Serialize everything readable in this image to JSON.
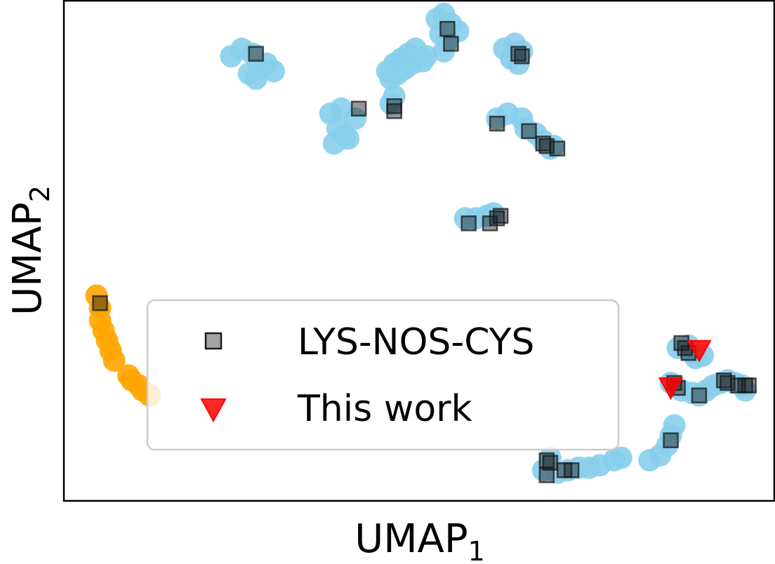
{
  "chart_data": {
    "type": "scatter",
    "xlabel": "UMAP",
    "xlabel_sub": "1",
    "ylabel": "UMAP",
    "ylabel_sub": "2",
    "xlim": [
      0,
      100
    ],
    "ylim": [
      0,
      100
    ],
    "grid": false,
    "legend_placement": "lower-center",
    "colors": {
      "cluster_blue": "#87ceeb",
      "cluster_orange": "#ffa500",
      "square_fill": "#1a1a1a",
      "triangle_fill": "#ff0000"
    },
    "blue_clusters": [
      [
        [
          23.5,
          89.0
        ],
        [
          25.0,
          90.5
        ],
        [
          26.5,
          89.5
        ],
        [
          27.5,
          86.5
        ],
        [
          26.0,
          85.5
        ],
        [
          28.5,
          87.5
        ],
        [
          29.5,
          86.0
        ],
        [
          27.0,
          84.5
        ]
      ],
      [
        [
          37.5,
          77.5
        ],
        [
          39.0,
          78.5
        ],
        [
          41.0,
          76.5
        ],
        [
          38.5,
          74.5
        ],
        [
          39.5,
          73.0
        ],
        [
          38.0,
          71.5
        ],
        [
          40.0,
          72.5
        ]
      ],
      [
        [
          45.5,
          86.0
        ],
        [
          46.5,
          87.5
        ],
        [
          47.5,
          88.5
        ],
        [
          48.5,
          89.5
        ],
        [
          49.5,
          90.5
        ],
        [
          46.0,
          84.5
        ],
        [
          47.0,
          85.5
        ],
        [
          48.0,
          86.5
        ],
        [
          49.0,
          87.5
        ],
        [
          50.5,
          88.0
        ],
        [
          46.0,
          79.5
        ],
        [
          46.5,
          81.0
        ],
        [
          51.0,
          89.0
        ]
      ],
      [
        [
          52.5,
          96.5
        ],
        [
          53.5,
          97.5
        ],
        [
          54.5,
          95.5
        ],
        [
          53.0,
          93.5
        ],
        [
          54.0,
          92.0
        ],
        [
          55.5,
          94.0
        ],
        [
          53.5,
          90.0
        ]
      ],
      [
        [
          62.0,
          90.5
        ],
        [
          63.5,
          91.5
        ],
        [
          64.5,
          90.0
        ],
        [
          63.0,
          88.5
        ],
        [
          64.0,
          87.5
        ]
      ],
      [
        [
          61.0,
          76.5
        ],
        [
          62.5,
          77.5
        ],
        [
          64.5,
          76.5
        ],
        [
          65.0,
          74.5
        ],
        [
          66.5,
          73.5
        ],
        [
          67.5,
          72.0
        ],
        [
          68.5,
          70.5
        ],
        [
          69.0,
          71.0
        ]
      ],
      [
        [
          56.5,
          56.5
        ],
        [
          58.0,
          56.5
        ],
        [
          59.5,
          57.0
        ],
        [
          60.5,
          57.5
        ]
      ],
      [
        [
          86.5,
          30.5
        ],
        [
          88.0,
          31.0
        ],
        [
          88.5,
          29.5
        ],
        [
          89.0,
          28.5
        ],
        [
          90.0,
          29.0
        ]
      ],
      [
        [
          85.5,
          23.5
        ],
        [
          87.0,
          22.0
        ],
        [
          88.5,
          21.5
        ],
        [
          89.5,
          21.0
        ],
        [
          90.5,
          22.0
        ],
        [
          91.5,
          23.0
        ],
        [
          92.5,
          23.5
        ],
        [
          93.5,
          24.0
        ],
        [
          94.5,
          23.5
        ],
        [
          95.5,
          23.0
        ],
        [
          96.0,
          22.0
        ]
      ],
      [
        [
          82.5,
          8.0
        ],
        [
          84.0,
          9.0
        ],
        [
          85.0,
          11.0
        ],
        [
          85.5,
          13.0
        ],
        [
          86.0,
          15.0
        ]
      ],
      [
        [
          67.5,
          6.0
        ],
        [
          68.5,
          8.5
        ],
        [
          69.5,
          5.5
        ],
        [
          71.0,
          6.0
        ],
        [
          72.5,
          6.5
        ],
        [
          74.0,
          6.5
        ],
        [
          75.5,
          7.0
        ],
        [
          77.5,
          8.0
        ],
        [
          78.5,
          8.5
        ]
      ]
    ],
    "orange_cluster": [
      [
        4.5,
        41.0
      ],
      [
        5.0,
        38.5
      ],
      [
        5.0,
        36.0
      ],
      [
        5.5,
        34.0
      ],
      [
        6.0,
        32.0
      ],
      [
        6.5,
        30.0
      ],
      [
        7.0,
        28.0
      ],
      [
        9.0,
        25.0
      ],
      [
        9.5,
        24.0
      ],
      [
        10.5,
        23.0
      ],
      [
        11.0,
        22.0
      ],
      [
        12.0,
        21.0
      ]
    ],
    "series": [
      {
        "name": "LYS-NOS-CYS",
        "marker": "square",
        "points": [
          [
            27.0,
            89.5
          ],
          [
            41.5,
            78.5
          ],
          [
            46.5,
            78.0
          ],
          [
            46.5,
            79.0
          ],
          [
            54.0,
            94.5
          ],
          [
            54.5,
            91.5
          ],
          [
            64.0,
            89.5
          ],
          [
            64.5,
            89.0
          ],
          [
            61.0,
            75.5
          ],
          [
            65.5,
            74.0
          ],
          [
            67.5,
            71.5
          ],
          [
            68.0,
            71.0
          ],
          [
            69.5,
            70.5
          ],
          [
            57.0,
            55.5
          ],
          [
            60.0,
            55.5
          ],
          [
            61.0,
            56.5
          ],
          [
            61.5,
            57.0
          ],
          [
            5.0,
            39.5
          ],
          [
            87.0,
            31.5
          ],
          [
            87.5,
            30.5
          ],
          [
            88.0,
            29.5
          ],
          [
            86.0,
            23.5
          ],
          [
            86.5,
            22.5
          ],
          [
            89.5,
            21.0
          ],
          [
            93.0,
            24.0
          ],
          [
            93.5,
            23.5
          ],
          [
            95.0,
            23.0
          ],
          [
            96.0,
            23.0
          ],
          [
            96.5,
            23.0
          ],
          [
            85.5,
            12.0
          ],
          [
            68.0,
            8.0
          ],
          [
            68.5,
            7.5
          ],
          [
            68.0,
            5.0
          ],
          [
            70.5,
            6.0
          ],
          [
            71.5,
            6.0
          ]
        ]
      },
      {
        "name": "This work",
        "marker": "triangle_down",
        "points": [
          [
            89.5,
            30.0
          ],
          [
            85.5,
            22.5
          ]
        ]
      }
    ]
  }
}
